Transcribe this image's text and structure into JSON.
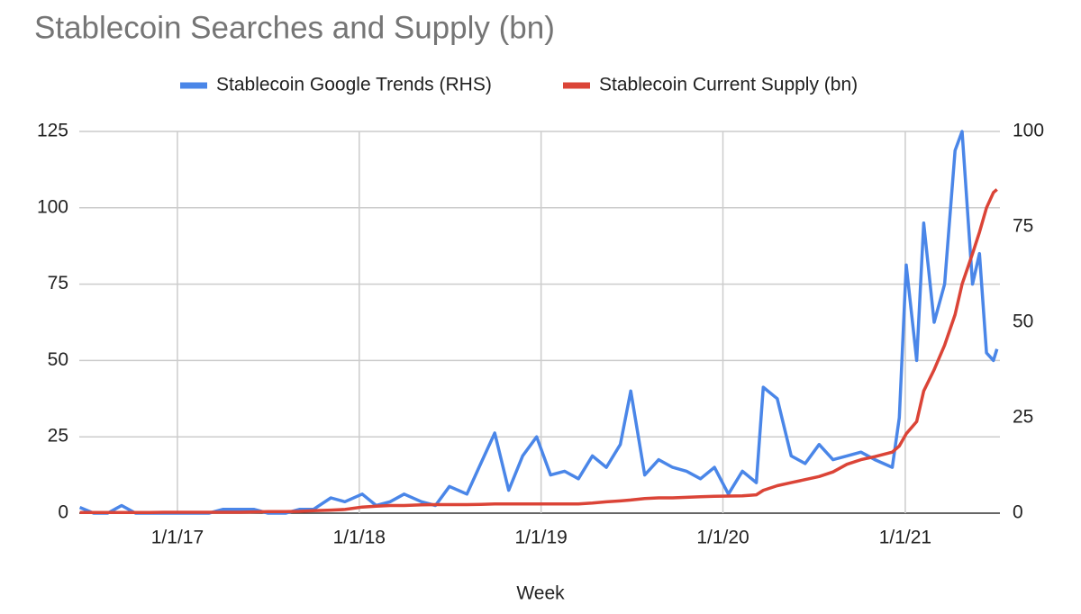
{
  "chart_data": {
    "type": "line",
    "title": "Stablecoin Searches and Supply (bn)",
    "x_label": "Week",
    "legend": "top",
    "grid": true,
    "x": [
      "2016-06-19",
      "2016-07-17",
      "2016-08-14",
      "2016-09-11",
      "2016-10-09",
      "2016-11-06",
      "2016-12-04",
      "2017-01-01",
      "2017-02-05",
      "2017-03-05",
      "2017-04-02",
      "2017-05-07",
      "2017-06-04",
      "2017-07-02",
      "2017-08-06",
      "2017-09-03",
      "2017-10-01",
      "2017-11-05",
      "2017-12-03",
      "2018-01-07",
      "2018-02-04",
      "2018-03-04",
      "2018-04-01",
      "2018-05-06",
      "2018-06-03",
      "2018-07-01",
      "2018-08-05",
      "2018-09-02",
      "2018-09-30",
      "2018-10-28",
      "2018-11-25",
      "2018-12-23",
      "2019-01-20",
      "2019-02-17",
      "2019-03-17",
      "2019-04-14",
      "2019-05-12",
      "2019-06-09",
      "2019-06-30",
      "2019-07-28",
      "2019-08-25",
      "2019-09-22",
      "2019-10-20",
      "2019-11-17",
      "2019-12-15",
      "2020-01-12",
      "2020-02-09",
      "2020-03-08",
      "2020-03-22",
      "2020-04-19",
      "2020-05-17",
      "2020-06-14",
      "2020-07-12",
      "2020-08-09",
      "2020-09-06",
      "2020-10-04",
      "2020-11-01",
      "2020-12-06",
      "2020-12-20",
      "2021-01-03",
      "2021-01-24",
      "2021-02-07",
      "2021-02-28",
      "2021-03-21",
      "2021-04-11",
      "2021-04-25",
      "2021-05-16",
      "2021-05-30",
      "2021-06-13",
      "2021-06-27",
      "2021-07-04"
    ],
    "series": [
      {
        "name": "Stablecoin Google Trends (RHS)",
        "color": "#4a86e8",
        "axis": "y2",
        "values": [
          1.5,
          0,
          0,
          2,
          0,
          0,
          0,
          0,
          0,
          0,
          1,
          1,
          1,
          0,
          0,
          1,
          1,
          4,
          3,
          5,
          2,
          3,
          5,
          3,
          2,
          7,
          5,
          13,
          21,
          6,
          15,
          20,
          10,
          11,
          9,
          15,
          12,
          18,
          32,
          10,
          14,
          12,
          11,
          9,
          12,
          5,
          11,
          8,
          33,
          30,
          15,
          13,
          18,
          14,
          15,
          16,
          14,
          12,
          25,
          65,
          40,
          76,
          50,
          60,
          95,
          100,
          60,
          68,
          42,
          40,
          43
        ]
      },
      {
        "name": "Stablecoin Current Supply (bn)",
        "color": "#db4437",
        "values": [
          0.2,
          0.2,
          0.2,
          0.2,
          0.2,
          0.2,
          0.3,
          0.3,
          0.3,
          0.3,
          0.3,
          0.3,
          0.4,
          0.5,
          0.5,
          0.6,
          0.8,
          1.0,
          1.2,
          2.0,
          2.3,
          2.5,
          2.5,
          2.7,
          2.8,
          2.8,
          2.8,
          2.9,
          3.0,
          3.0,
          3.0,
          3.0,
          3.0,
          3.0,
          3.0,
          3.3,
          3.7,
          4.0,
          4.3,
          4.8,
          5.0,
          5.0,
          5.2,
          5.4,
          5.5,
          5.6,
          5.7,
          6.0,
          7.5,
          9.0,
          10.0,
          11.0,
          12.0,
          13.5,
          16.0,
          17.5,
          18.5,
          20.0,
          22.0,
          26.0,
          30.0,
          40.0,
          47.0,
          55.0,
          65.0,
          75.0,
          85.0,
          92.0,
          100.0,
          105.0,
          106.0
        ]
      }
    ],
    "xlim": [
      "2016-06-18",
      "2021-07-10"
    ],
    "xticks": [
      {
        "value": "2017-01-01",
        "label": "1/1/17"
      },
      {
        "value": "2018-01-01",
        "label": "1/1/18"
      },
      {
        "value": "2019-01-01",
        "label": "1/1/19"
      },
      {
        "value": "2020-01-01",
        "label": "1/1/20"
      },
      {
        "value": "2021-01-01",
        "label": "1/1/21"
      }
    ],
    "ylim": [
      0,
      125
    ],
    "yticks": [
      0,
      25,
      50,
      75,
      100,
      125
    ],
    "y2lim": [
      0,
      100
    ],
    "y2ticks": [
      0,
      25,
      50,
      75,
      100
    ]
  }
}
